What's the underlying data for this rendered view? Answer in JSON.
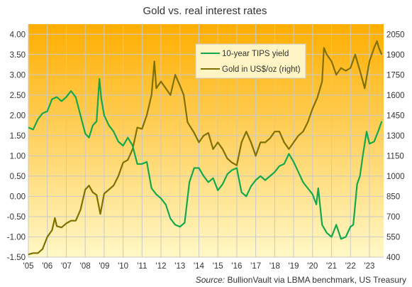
{
  "chart_data": {
    "type": "line",
    "title": "Gold vs. real interest rates",
    "source_prefix": "Source:",
    "source_text": " BullionVault via LBMA benchmark, US Treasury",
    "x_tick_labels": [
      "'05",
      "'06",
      "'07",
      "'08",
      "'09",
      "'10",
      "'11",
      "'12",
      "'13",
      "'14",
      "'15",
      "'16",
      "'17",
      "'18",
      "'19",
      "'20",
      "'21",
      "'22",
      "'23"
    ],
    "xlim": [
      2005.0,
      2023.75
    ],
    "y_left": {
      "range": [
        -1.5,
        4.25
      ],
      "ticks": [
        "4.00",
        "3.50",
        "3.00",
        "2.50",
        "2.00",
        "1.50",
        "1.00",
        "0.50",
        "0.00",
        "-0.50",
        "-1.00",
        "-1.50"
      ],
      "tick_values": [
        4.0,
        3.5,
        3.0,
        2.5,
        2.0,
        1.5,
        1.0,
        0.5,
        0.0,
        -0.5,
        -1.0,
        -1.5
      ]
    },
    "y_right": {
      "range": [
        400,
        2125
      ],
      "ticks": [
        "2050",
        "1900",
        "1750",
        "1600",
        "1450",
        "1300",
        "1150",
        "1000",
        "850",
        "700",
        "550",
        "400"
      ],
      "tick_values": [
        2050,
        1900,
        1750,
        1600,
        1450,
        1300,
        1150,
        1000,
        850,
        700,
        550,
        400
      ]
    },
    "grid": true,
    "legend_position": "top-center",
    "background_gradient": [
      "#FFAE00",
      "#FFF8C6"
    ],
    "series": [
      {
        "name": "10-year TIPS yield",
        "axis": "left",
        "color": "#13A84D",
        "x": [
          2005.0,
          2005.25,
          2005.5,
          2005.75,
          2006.0,
          2006.25,
          2006.5,
          2006.75,
          2007.0,
          2007.25,
          2007.5,
          2007.75,
          2008.0,
          2008.2,
          2008.4,
          2008.6,
          2008.75,
          2008.85,
          2009.0,
          2009.25,
          2009.5,
          2009.75,
          2010.0,
          2010.25,
          2010.5,
          2010.75,
          2011.0,
          2011.25,
          2011.5,
          2011.75,
          2012.0,
          2012.25,
          2012.5,
          2012.75,
          2013.0,
          2013.25,
          2013.5,
          2013.75,
          2014.0,
          2014.25,
          2014.5,
          2014.75,
          2015.0,
          2015.25,
          2015.5,
          2015.75,
          2016.0,
          2016.25,
          2016.5,
          2016.75,
          2017.0,
          2017.25,
          2017.5,
          2017.75,
          2018.0,
          2018.25,
          2018.5,
          2018.75,
          2019.0,
          2019.25,
          2019.5,
          2019.75,
          2020.0,
          2020.2,
          2020.3,
          2020.5,
          2020.75,
          2021.0,
          2021.25,
          2021.5,
          2021.75,
          2022.0,
          2022.15,
          2022.35,
          2022.5,
          2022.65,
          2022.85,
          2023.0,
          2023.25,
          2023.5,
          2023.65
        ],
        "values": [
          1.7,
          1.65,
          1.9,
          2.05,
          2.1,
          2.4,
          2.45,
          2.35,
          2.45,
          2.6,
          2.45,
          2.0,
          1.55,
          1.45,
          1.75,
          1.85,
          2.9,
          2.4,
          2.0,
          1.75,
          1.6,
          1.35,
          1.25,
          1.45,
          1.25,
          0.8,
          0.8,
          0.85,
          0.2,
          0.05,
          -0.05,
          -0.2,
          -0.55,
          -0.7,
          -0.75,
          -0.65,
          0.35,
          0.7,
          0.7,
          0.5,
          0.35,
          0.45,
          0.15,
          0.3,
          0.55,
          0.65,
          0.7,
          0.1,
          0.0,
          0.25,
          0.4,
          0.5,
          0.4,
          0.5,
          0.6,
          0.75,
          0.8,
          1.05,
          0.85,
          0.6,
          0.35,
          0.2,
          0.05,
          -0.2,
          0.2,
          -0.7,
          -0.9,
          -1.0,
          -0.7,
          -1.05,
          -1.0,
          -0.75,
          -0.7,
          0.3,
          0.5,
          1.0,
          1.6,
          1.3,
          1.35,
          1.65,
          1.85
        ]
      },
      {
        "name": "Gold in US$/oz (right)",
        "axis": "right",
        "color": "#807000",
        "x": [
          2005.0,
          2005.25,
          2005.5,
          2005.75,
          2006.0,
          2006.25,
          2006.4,
          2006.5,
          2006.75,
          2007.0,
          2007.25,
          2007.5,
          2007.75,
          2008.0,
          2008.2,
          2008.4,
          2008.6,
          2008.8,
          2009.0,
          2009.25,
          2009.5,
          2009.75,
          2010.0,
          2010.25,
          2010.5,
          2010.75,
          2011.0,
          2011.25,
          2011.5,
          2011.65,
          2011.75,
          2012.0,
          2012.25,
          2012.5,
          2012.75,
          2013.0,
          2013.2,
          2013.4,
          2013.75,
          2014.0,
          2014.25,
          2014.5,
          2014.75,
          2015.0,
          2015.25,
          2015.5,
          2015.75,
          2016.0,
          2016.25,
          2016.5,
          2016.75,
          2017.0,
          2017.25,
          2017.5,
          2017.75,
          2018.0,
          2018.25,
          2018.5,
          2018.75,
          2019.0,
          2019.25,
          2019.5,
          2019.75,
          2020.0,
          2020.25,
          2020.5,
          2020.6,
          2020.75,
          2021.0,
          2021.25,
          2021.5,
          2021.75,
          2022.0,
          2022.25,
          2022.5,
          2022.75,
          2023.0,
          2023.25,
          2023.4,
          2023.5,
          2023.65
        ],
        "values": [
          420,
          430,
          430,
          460,
          550,
          600,
          690,
          630,
          620,
          650,
          670,
          670,
          750,
          900,
          930,
          880,
          860,
          720,
          870,
          900,
          930,
          1000,
          1100,
          1120,
          1200,
          1360,
          1350,
          1450,
          1600,
          1850,
          1650,
          1700,
          1650,
          1600,
          1750,
          1670,
          1600,
          1400,
          1320,
          1250,
          1300,
          1320,
          1200,
          1250,
          1200,
          1130,
          1100,
          1080,
          1250,
          1330,
          1250,
          1150,
          1250,
          1250,
          1280,
          1330,
          1330,
          1250,
          1200,
          1250,
          1300,
          1330,
          1400,
          1500,
          1580,
          1700,
          1950,
          1900,
          1850,
          1750,
          1800,
          1780,
          1800,
          1900,
          1780,
          1650,
          1850,
          1950,
          2000,
          1950,
          1900
        ]
      }
    ]
  }
}
